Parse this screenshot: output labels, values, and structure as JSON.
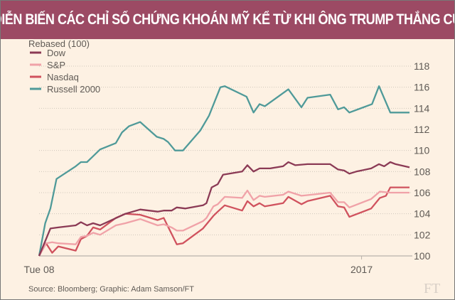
{
  "chart_data": {
    "type": "line",
    "title": "DIỄN BIẾN CÁC CHỈ SỐ CHỨNG KHOÁN MỸ KỂ TỪ KHI ÔNG TRUMP THẮNG CỬ",
    "ylabel": "Rebased (100)",
    "source": "Source: Bloomberg; Graphic: Adam Samson/FT",
    "logo": "FT",
    "x_unit": "trading days since Tue 08 Nov 2016",
    "x_ticks": [
      {
        "x": 0,
        "label": "Tue 08"
      },
      {
        "x": 37,
        "label": "2017"
      }
    ],
    "xlim": [
      0,
      42.5
    ],
    "ylim": [
      100,
      118
    ],
    "y_ticks": [
      100,
      102,
      104,
      106,
      108,
      110,
      112,
      114,
      116,
      118
    ],
    "grid": true,
    "legend": "top-left",
    "series": [
      {
        "name": "Dow",
        "color": "#8b3a55",
        "points": [
          [
            0,
            100
          ],
          [
            1.3,
            102.6
          ],
          [
            2.2,
            102.7
          ],
          [
            4.2,
            102.9
          ],
          [
            4.8,
            103.2
          ],
          [
            5.5,
            102.9
          ],
          [
            6.2,
            103.1
          ],
          [
            7.0,
            102.9
          ],
          [
            9.9,
            104.0
          ],
          [
            11.6,
            104.4
          ],
          [
            13.6,
            104.2
          ],
          [
            14.3,
            104.3
          ],
          [
            15.2,
            104.3
          ],
          [
            15.8,
            104.6
          ],
          [
            16.8,
            104.5
          ],
          [
            18.8,
            104.8
          ],
          [
            19.2,
            105.0
          ],
          [
            19.8,
            106.5
          ],
          [
            20.5,
            106.8
          ],
          [
            21.1,
            107.7
          ],
          [
            23.3,
            108.0
          ],
          [
            23.9,
            108.6
          ],
          [
            24.6,
            108.0
          ],
          [
            25.3,
            108.3
          ],
          [
            26.5,
            108.3
          ],
          [
            28.0,
            108.5
          ],
          [
            28.6,
            108.9
          ],
          [
            29.4,
            108.6
          ],
          [
            30.8,
            108.7
          ],
          [
            33.4,
            108.7
          ],
          [
            34.3,
            108.2
          ],
          [
            35.0,
            108.1
          ],
          [
            35.6,
            107.8
          ],
          [
            36.4,
            108.0
          ],
          [
            38.1,
            108.3
          ],
          [
            39.0,
            108.7
          ],
          [
            39.6,
            108.5
          ],
          [
            40.3,
            108.9
          ],
          [
            40.9,
            108.7
          ],
          [
            42.5,
            108.4
          ]
        ]
      },
      {
        "name": "S&P",
        "color": "#f0a2a8",
        "points": [
          [
            0,
            100
          ],
          [
            0.8,
            101.2
          ],
          [
            1.5,
            101.3
          ],
          [
            2.2,
            101.2
          ],
          [
            4.2,
            101.1
          ],
          [
            4.8,
            101.8
          ],
          [
            5.5,
            101.9
          ],
          [
            6.2,
            102.2
          ],
          [
            7.0,
            102.0
          ],
          [
            8.8,
            102.9
          ],
          [
            9.9,
            103.1
          ],
          [
            11.6,
            103.5
          ],
          [
            13.6,
            102.9
          ],
          [
            14.3,
            103.0
          ],
          [
            15.2,
            102.7
          ],
          [
            15.8,
            102.4
          ],
          [
            16.5,
            102.4
          ],
          [
            18.8,
            103.3
          ],
          [
            19.2,
            103.6
          ],
          [
            20.0,
            104.7
          ],
          [
            20.5,
            104.9
          ],
          [
            21.3,
            105.6
          ],
          [
            23.3,
            105.5
          ],
          [
            23.9,
            106.2
          ],
          [
            24.6,
            105.3
          ],
          [
            25.3,
            105.7
          ],
          [
            25.9,
            105.6
          ],
          [
            28.0,
            105.8
          ],
          [
            28.6,
            106.1
          ],
          [
            30.1,
            105.7
          ],
          [
            33.4,
            106.0
          ],
          [
            34.3,
            105.1
          ],
          [
            35.0,
            105.1
          ],
          [
            35.6,
            104.6
          ],
          [
            38.1,
            105.4
          ],
          [
            39.1,
            106.1
          ],
          [
            40.3,
            106.0
          ],
          [
            42.5,
            106.0
          ]
        ]
      },
      {
        "name": "Nasdaq",
        "color": "#d0525e",
        "points": [
          [
            0,
            100
          ],
          [
            0.8,
            101.2
          ],
          [
            1.5,
            100.3
          ],
          [
            2.2,
            100.9
          ],
          [
            4.2,
            100.5
          ],
          [
            4.8,
            101.6
          ],
          [
            5.5,
            101.9
          ],
          [
            6.2,
            102.7
          ],
          [
            7.0,
            102.5
          ],
          [
            8.8,
            103.6
          ],
          [
            9.9,
            104.0
          ],
          [
            11.6,
            103.9
          ],
          [
            13.6,
            103.4
          ],
          [
            14.3,
            103.6
          ],
          [
            15.8,
            101.1
          ],
          [
            16.5,
            101.2
          ],
          [
            18.8,
            102.6
          ],
          [
            19.2,
            103.0
          ],
          [
            20.0,
            103.8
          ],
          [
            20.5,
            104.2
          ],
          [
            21.3,
            104.8
          ],
          [
            23.3,
            104.3
          ],
          [
            23.9,
            105.2
          ],
          [
            24.6,
            104.7
          ],
          [
            25.3,
            105.0
          ],
          [
            25.9,
            104.7
          ],
          [
            28.0,
            105.0
          ],
          [
            28.6,
            105.6
          ],
          [
            30.1,
            104.9
          ],
          [
            30.8,
            105.2
          ],
          [
            33.4,
            105.7
          ],
          [
            34.3,
            104.7
          ],
          [
            35.0,
            104.6
          ],
          [
            35.6,
            103.7
          ],
          [
            38.1,
            104.5
          ],
          [
            39.1,
            105.5
          ],
          [
            39.8,
            105.7
          ],
          [
            40.3,
            106.5
          ],
          [
            42.5,
            106.5
          ]
        ]
      },
      {
        "name": "Russell 2000",
        "color": "#4f9a99",
        "points": [
          [
            0,
            100
          ],
          [
            0.7,
            103.1
          ],
          [
            1.3,
            104.5
          ],
          [
            2.0,
            107.3
          ],
          [
            4.2,
            108.5
          ],
          [
            4.8,
            108.9
          ],
          [
            5.5,
            108.9
          ],
          [
            7.0,
            110.1
          ],
          [
            8.8,
            110.7
          ],
          [
            9.5,
            111.7
          ],
          [
            10.3,
            112.3
          ],
          [
            11.6,
            112.7
          ],
          [
            13.5,
            111.3
          ],
          [
            14.3,
            111.1
          ],
          [
            14.8,
            110.8
          ],
          [
            15.6,
            110.0
          ],
          [
            16.5,
            110.0
          ],
          [
            18.5,
            111.9
          ],
          [
            19.5,
            113.3
          ],
          [
            20.8,
            116.0
          ],
          [
            21.3,
            116.1
          ],
          [
            23.8,
            115.1
          ],
          [
            24.6,
            113.6
          ],
          [
            25.3,
            114.4
          ],
          [
            25.9,
            114.2
          ],
          [
            28.6,
            115.8
          ],
          [
            30.1,
            114.1
          ],
          [
            30.8,
            115.0
          ],
          [
            33.4,
            115.3
          ],
          [
            34.3,
            113.9
          ],
          [
            35.0,
            114.1
          ],
          [
            35.6,
            113.6
          ],
          [
            38.2,
            114.4
          ],
          [
            39.0,
            116.1
          ],
          [
            40.3,
            113.6
          ],
          [
            42.5,
            113.6
          ]
        ]
      }
    ]
  }
}
